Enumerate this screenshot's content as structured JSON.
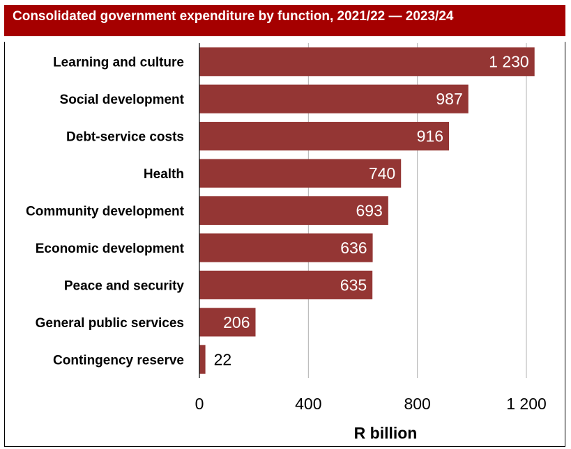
{
  "chart_data": {
    "type": "bar",
    "orientation": "horizontal",
    "title": "Consolidated government expenditure by function, 2021/22 — 2023/24",
    "categories": [
      "Learning and culture",
      "Social development",
      "Debt-service costs",
      "Health",
      "Community development",
      "Economic development",
      "Peace and security",
      "General public services",
      "Contingency reserve"
    ],
    "values": [
      1230,
      987,
      916,
      740,
      693,
      636,
      635,
      206,
      22
    ],
    "value_labels": [
      "1 230",
      "987",
      "916",
      "740",
      "693",
      "636",
      "635",
      "206",
      "22"
    ],
    "xlabel": "R billion",
    "ylabel": "",
    "xlim": [
      0,
      1200
    ],
    "xticks": [
      0,
      400,
      800,
      1200
    ],
    "xtick_labels": [
      "0",
      "400",
      "800",
      "1 200"
    ],
    "grid": true,
    "legend": "none",
    "colors": {
      "bar": "#943634",
      "header": "#a50000",
      "label_inside": "#ffffff",
      "label_outside": "#000000"
    }
  }
}
